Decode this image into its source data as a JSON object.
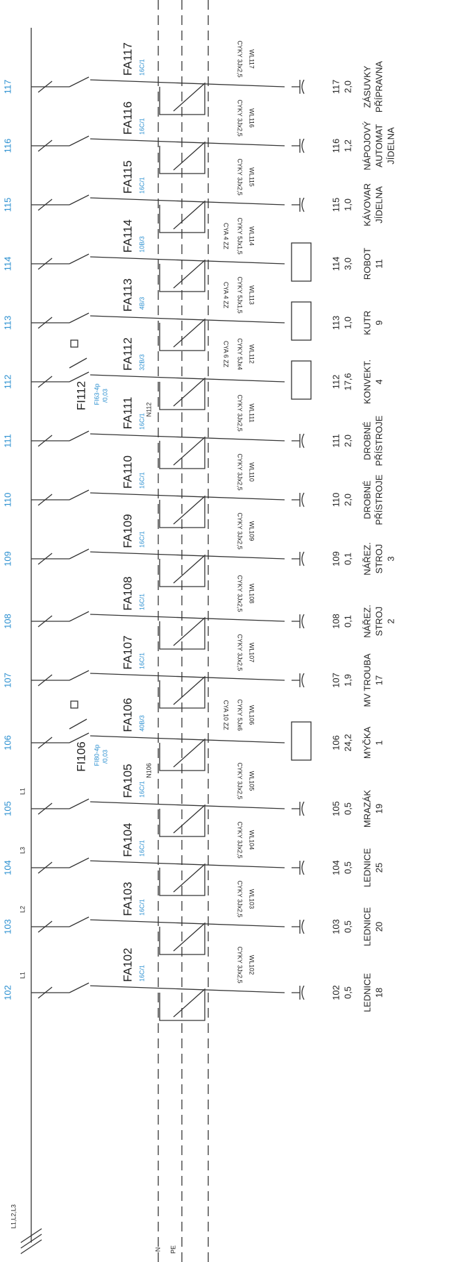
{
  "header": {
    "supply": "L1,L2,L3",
    "neutral": "N",
    "earth": "PE"
  },
  "rcds": [
    {
      "label": "FI106",
      "rating": "FI80-4p",
      "sensitivity": "/0,03",
      "neutral": "N106"
    },
    {
      "label": "FI112",
      "rating": "FI63-4p",
      "sensitivity": "/0,03",
      "neutral": "N112"
    }
  ],
  "circuits": [
    {
      "num": "102",
      "phase": "L1",
      "breaker": "FA102",
      "rating": "16C/1",
      "cable_id": "WL102",
      "cable": "CYKY 3Jx2,5",
      "power": "0,5",
      "desc": [
        "LEDNICE",
        "18"
      ]
    },
    {
      "num": "103",
      "phase": "L2",
      "breaker": "FA103",
      "rating": "16C/1",
      "cable_id": "WL103",
      "cable": "CYKY 3Jx2,5",
      "power": "0,5",
      "desc": [
        "LEDNICE",
        "20"
      ]
    },
    {
      "num": "104",
      "phase": "L3",
      "breaker": "FA104",
      "rating": "16C/1",
      "cable_id": "WL104",
      "cable": "CYKY 3Jx2,5",
      "power": "0,5",
      "desc": [
        "LEDNICE",
        "25"
      ]
    },
    {
      "num": "105",
      "phase": "L1",
      "breaker": "FA105",
      "rating": "16C/1",
      "cable_id": "WL105",
      "cable": "CYKY 3Jx2,5",
      "power": "0,5",
      "desc": [
        "MRAZÁK",
        "19"
      ]
    },
    {
      "num": "106",
      "breaker": "FA106",
      "rating": "40B/3",
      "cable_id": "WL106",
      "cable": "CYKY 5Jx6",
      "control": "CYA 10 ZZ",
      "power": "24,2",
      "desc": [
        "MYČKA",
        "1"
      ]
    },
    {
      "num": "107",
      "breaker": "FA107",
      "rating": "16C/1",
      "cable_id": "WL107",
      "cable": "CYKY 3Jx2,5",
      "power": "1,9",
      "desc": [
        "MV TROUBA",
        "17"
      ]
    },
    {
      "num": "108",
      "breaker": "FA108",
      "rating": "16C/1",
      "cable_id": "WL108",
      "cable": "CYKY 3Jx2,5",
      "power": "0,1",
      "desc": [
        "NÁŘEZ.",
        "STROJ",
        "2"
      ]
    },
    {
      "num": "109",
      "breaker": "FA109",
      "rating": "16C/1",
      "cable_id": "WL109",
      "cable": "CYKY 3Jx2,5",
      "power": "0,1",
      "desc": [
        "NÁŘEZ.",
        "STROJ",
        "3"
      ]
    },
    {
      "num": "110",
      "breaker": "FA110",
      "rating": "16C/1",
      "cable_id": "WL110",
      "cable": "CYKY 3Jx2,5",
      "power": "2,0",
      "desc": [
        "DROBNÉ",
        "PŘÍSTROJE"
      ]
    },
    {
      "num": "111",
      "breaker": "FA111",
      "rating": "16C/1",
      "cable_id": "WL111",
      "cable": "CYKY 3Jx2,5",
      "power": "2,0",
      "desc": [
        "DROBNÉ",
        "PŘÍSTROJE"
      ]
    },
    {
      "num": "112",
      "breaker": "FA112",
      "rating": "32B/3",
      "cable_id": "WL112",
      "cable": "CYKY 5Jx4",
      "control": "CYA 6 ZZ",
      "power": "17,6",
      "desc": [
        "KONVEKT.",
        "4"
      ]
    },
    {
      "num": "113",
      "breaker": "FA113",
      "rating": "4B/3",
      "cable_id": "WL113",
      "cable": "CYKY 5Jx1,5",
      "control": "CYA 4 ZZ",
      "power": "1,0",
      "desc": [
        "KUTR",
        "9"
      ]
    },
    {
      "num": "114",
      "breaker": "FA114",
      "rating": "10B/3",
      "cable_id": "WL114",
      "cable": "CYKY 5Jx1,5",
      "control": "CYA 4 ZZ",
      "power": "3,0",
      "desc": [
        "ROBOT",
        "11"
      ]
    },
    {
      "num": "115",
      "breaker": "FA115",
      "rating": "16C/1",
      "cable_id": "WL115",
      "cable": "CYKY 3Jx2,5",
      "power": "1,0",
      "desc": [
        "KÁVOVAR",
        "JÍDELNA"
      ]
    },
    {
      "num": "116",
      "breaker": "FA116",
      "rating": "16C/1",
      "cable_id": "WL116",
      "cable": "CYKY 3Jx2,5",
      "power": "1,2",
      "desc": [
        "NÁPOJOVÝ",
        "AUTOMAT",
        "JÍDELNA"
      ]
    },
    {
      "num": "117",
      "breaker": "FA117",
      "rating": "16C/1",
      "cable_id": "WL117",
      "cable": "CYKY 3Jx2,5",
      "power": "2,0",
      "desc": [
        "ZÁSUVKY",
        "PŘÍPRAVNA"
      ]
    }
  ]
}
